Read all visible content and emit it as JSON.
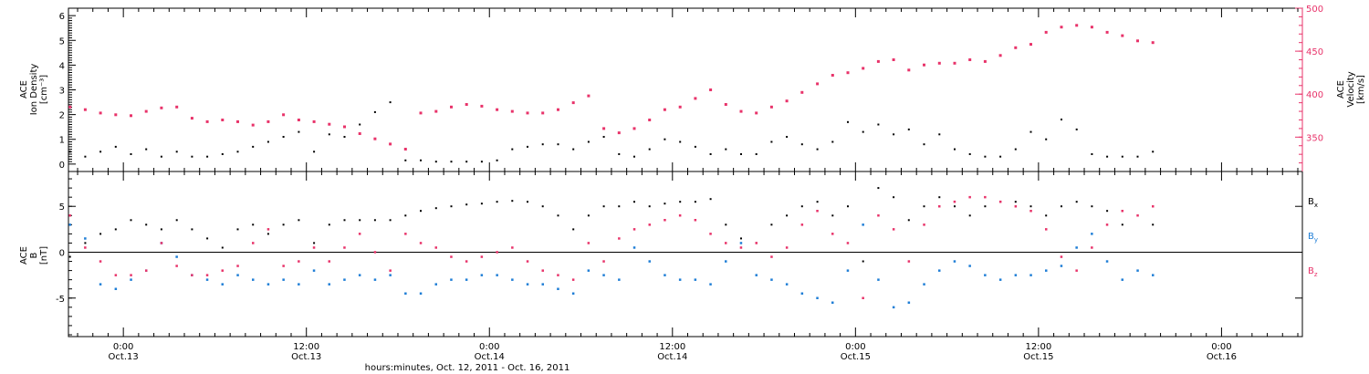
{
  "colors": {
    "density": "#000000",
    "velocity": "#e8336a",
    "bx": "#000000",
    "by": "#1f7ed6",
    "bz": "#e8336a"
  },
  "xaxis": {
    "title": "hours:minutes, Oct. 12, 2011 - Oct. 16, 2011",
    "range_hours": [
      -3.6,
      77.3
    ],
    "ticks": [
      {
        "h": 0,
        "time": "0:00",
        "date": "Oct.13"
      },
      {
        "h": 12,
        "time": "12:00",
        "date": "Oct.13"
      },
      {
        "h": 24,
        "time": "0:00",
        "date": "Oct.14"
      },
      {
        "h": 36,
        "time": "12:00",
        "date": "Oct.14"
      },
      {
        "h": 48,
        "time": "0:00",
        "date": "Oct.15"
      },
      {
        "h": 60,
        "time": "12:00",
        "date": "Oct.15"
      },
      {
        "h": 72,
        "time": "0:00",
        "date": "Oct.16"
      }
    ]
  },
  "chart_data": [
    {
      "type": "scatter",
      "panel": "top",
      "ylabel_left": [
        "ACE",
        "Ion Density",
        "[cm⁻³]"
      ],
      "ylabel_right": [
        "ACE",
        "Velocity",
        "[km/s]"
      ],
      "left_axis": {
        "ylim": [
          -0.3,
          6.3
        ],
        "ticks": [
          0,
          1,
          2,
          3,
          4,
          5,
          6
        ]
      },
      "right_axis": {
        "ylim": [
          310,
          500
        ],
        "ticks": [
          350,
          400,
          450,
          500
        ]
      },
      "series": [
        {
          "axis": "left",
          "x": [
            -3.5,
            -2.5,
            -1.5,
            -0.5,
            0.5,
            1.5,
            2.5,
            3.5,
            4.5,
            5.5,
            6.5,
            7.5,
            8.5,
            9.5,
            10.5,
            11.5,
            12.5,
            13.5,
            14.5,
            15.5,
            16.5,
            17.5,
            18.5,
            19.5,
            20.5,
            21.5,
            22.5,
            23.5,
            24.5,
            25.5,
            26.5,
            27.5,
            28.5,
            29.5,
            30.5,
            31.5,
            32.5,
            33.5,
            34.5,
            35.5,
            36.5,
            37.5,
            38.5,
            39.5,
            40.5,
            41.5,
            42.5,
            43.5,
            44.5,
            45.5,
            46.5,
            47.5,
            48.5,
            49.5,
            50.5,
            51.5,
            52.5,
            53.5,
            54.5,
            55.5,
            56.5,
            57.5,
            58.5,
            59.5,
            60.5,
            61.5,
            62.5,
            63.5,
            64.5,
            65.5,
            66.5,
            67.5
          ],
          "values": [
            0.5,
            0.3,
            0.5,
            0.7,
            0.4,
            0.6,
            0.3,
            0.5,
            0.3,
            0.3,
            0.4,
            0.5,
            0.7,
            0.9,
            1.1,
            1.3,
            0.5,
            1.2,
            1.1,
            1.6,
            2.1,
            2.5,
            0.15,
            0.15,
            0.1,
            0.1,
            0.1,
            0.1,
            0.15,
            0.6,
            0.7,
            0.8,
            0.8,
            0.6,
            0.9,
            1.1,
            0.4,
            0.3,
            0.6,
            1.0,
            0.9,
            0.7,
            0.4,
            0.6,
            0.4,
            0.4,
            0.9,
            1.1,
            0.8,
            0.6,
            0.9,
            1.7,
            1.3,
            1.6,
            1.2,
            1.4,
            0.8,
            1.2,
            0.6,
            0.4,
            0.3,
            0.3,
            0.6,
            1.3,
            1.0,
            1.8,
            1.4,
            0.4,
            0.3,
            0.3,
            0.3,
            0.5
          ]
        },
        {
          "axis": "right",
          "x": [
            -3.5,
            -2.5,
            -1.5,
            -0.5,
            0.5,
            1.5,
            2.5,
            3.5,
            4.5,
            5.5,
            6.5,
            7.5,
            8.5,
            9.5,
            10.5,
            11.5,
            12.5,
            13.5,
            14.5,
            15.5,
            16.5,
            17.5,
            18.5,
            19.5,
            20.5,
            21.5,
            22.5,
            23.5,
            24.5,
            25.5,
            26.5,
            27.5,
            28.5,
            29.5,
            30.5,
            31.5,
            32.5,
            33.5,
            34.5,
            35.5,
            36.5,
            37.5,
            38.5,
            39.5,
            40.5,
            41.5,
            42.5,
            43.5,
            44.5,
            45.5,
            46.5,
            47.5,
            48.5,
            49.5,
            50.5,
            51.5,
            52.5,
            53.5,
            54.5,
            55.5,
            56.5,
            57.5,
            58.5,
            59.5,
            60.5,
            61.5,
            62.5,
            63.5,
            64.5,
            65.5,
            66.5,
            67.5
          ],
          "values": [
            385,
            382,
            378,
            376,
            375,
            380,
            384,
            385,
            372,
            368,
            370,
            368,
            364,
            368,
            376,
            370,
            368,
            365,
            362,
            354,
            348,
            342,
            336,
            378,
            380,
            385,
            388,
            386,
            382,
            380,
            378,
            378,
            382,
            390,
            398,
            360,
            355,
            360,
            370,
            382,
            385,
            395,
            405,
            388,
            380,
            378,
            385,
            392,
            402,
            412,
            422,
            425,
            430,
            438,
            440,
            428,
            434,
            436,
            436,
            440,
            438,
            445,
            454,
            458,
            472,
            478,
            480,
            478,
            472,
            468,
            462,
            460
          ]
        }
      ]
    },
    {
      "type": "scatter",
      "panel": "bottom",
      "ylabel_left": [
        "ACE",
        "B",
        "[nT]"
      ],
      "ylim": [
        -9.2,
        8.8
      ],
      "ticks": [
        -5,
        0,
        5
      ],
      "zero_line": true,
      "series": [
        {
          "name": "B",
          "subscript": "x",
          "x": [
            -3.5,
            -2.5,
            -1.5,
            -0.5,
            0.5,
            1.5,
            2.5,
            3.5,
            4.5,
            5.5,
            6.5,
            7.5,
            8.5,
            9.5,
            10.5,
            11.5,
            12.5,
            13.5,
            14.5,
            15.5,
            16.5,
            17.5,
            18.5,
            19.5,
            20.5,
            21.5,
            22.5,
            23.5,
            24.5,
            25.5,
            26.5,
            27.5,
            28.5,
            29.5,
            30.5,
            31.5,
            32.5,
            33.5,
            34.5,
            35.5,
            36.5,
            37.5,
            38.5,
            39.5,
            40.5,
            41.5,
            42.5,
            43.5,
            44.5,
            45.5,
            46.5,
            47.5,
            48.5,
            49.5,
            50.5,
            51.5,
            52.5,
            53.5,
            54.5,
            55.5,
            56.5,
            57.5,
            58.5,
            59.5,
            60.5,
            61.5,
            62.5,
            63.5,
            64.5,
            65.5,
            66.5,
            67.5
          ],
          "values": [
            -0.5,
            1.0,
            2.0,
            2.5,
            3.5,
            3.0,
            2.5,
            3.5,
            2.5,
            1.5,
            0.5,
            2.5,
            3.0,
            2.0,
            3.0,
            3.5,
            1.0,
            3.0,
            3.5,
            3.5,
            3.5,
            3.5,
            4.0,
            4.5,
            4.8,
            5.0,
            5.2,
            5.3,
            5.5,
            5.6,
            5.5,
            5.0,
            4.0,
            2.5,
            4.0,
            5.0,
            5.0,
            5.5,
            5.0,
            5.3,
            5.5,
            5.5,
            5.8,
            3.0,
            1.5,
            1.0,
            3.0,
            4.0,
            5.0,
            5.5,
            4.0,
            5.0,
            -1.0,
            7.0,
            6.0,
            3.5,
            5.0,
            6.0,
            5.0,
            4.0,
            5.0,
            5.5,
            5.5,
            5.0,
            4.0,
            5.0,
            5.5,
            5.0,
            4.5,
            3.0,
            4.0,
            3.0
          ]
        },
        {
          "name": "B",
          "subscript": "y",
          "x": [
            -3.5,
            -2.5,
            -1.5,
            -0.5,
            0.5,
            1.5,
            2.5,
            3.5,
            4.5,
            5.5,
            6.5,
            7.5,
            8.5,
            9.5,
            10.5,
            11.5,
            12.5,
            13.5,
            14.5,
            15.5,
            16.5,
            17.5,
            18.5,
            19.5,
            20.5,
            21.5,
            22.5,
            23.5,
            24.5,
            25.5,
            26.5,
            27.5,
            28.5,
            29.5,
            30.5,
            31.5,
            32.5,
            33.5,
            34.5,
            35.5,
            36.5,
            37.5,
            38.5,
            39.5,
            40.5,
            41.5,
            42.5,
            43.5,
            44.5,
            45.5,
            46.5,
            47.5,
            48.5,
            49.5,
            50.5,
            51.5,
            52.5,
            53.5,
            54.5,
            55.5,
            56.5,
            57.5,
            58.5,
            59.5,
            60.5,
            61.5,
            62.5,
            63.5,
            64.5,
            65.5,
            66.5,
            67.5
          ],
          "values": [
            3.0,
            1.5,
            -3.5,
            -4.0,
            -3.0,
            -2.0,
            1.0,
            -0.5,
            -2.5,
            -3.0,
            -3.5,
            -2.5,
            -3.0,
            -3.5,
            -3.0,
            -3.5,
            -2.0,
            -3.5,
            -3.0,
            -2.5,
            -3.0,
            -2.5,
            -4.5,
            -4.5,
            -3.5,
            -3.0,
            -3.0,
            -2.5,
            -2.5,
            -3.0,
            -3.5,
            -3.5,
            -4.0,
            -4.5,
            -2.0,
            -2.5,
            -3.0,
            0.5,
            -1.0,
            -2.5,
            -3.0,
            -3.0,
            -3.5,
            -1.0,
            1.0,
            -2.5,
            -3.0,
            -3.5,
            -4.5,
            -5.0,
            -5.5,
            -2.0,
            3.0,
            -3.0,
            -6.0,
            -5.5,
            -3.5,
            -2.0,
            -1.0,
            -1.5,
            -2.5,
            -3.0,
            -2.5,
            -2.5,
            -2.0,
            -1.5,
            0.5,
            2.0,
            -1.0,
            -3.0,
            -2.0,
            -2.5
          ]
        },
        {
          "name": "B",
          "subscript": "z",
          "x": [
            -3.5,
            -2.5,
            -1.5,
            -0.5,
            0.5,
            1.5,
            2.5,
            3.5,
            4.5,
            5.5,
            6.5,
            7.5,
            8.5,
            9.5,
            10.5,
            11.5,
            12.5,
            13.5,
            14.5,
            15.5,
            16.5,
            17.5,
            18.5,
            19.5,
            20.5,
            21.5,
            22.5,
            23.5,
            24.5,
            25.5,
            26.5,
            27.5,
            28.5,
            29.5,
            30.5,
            31.5,
            32.5,
            33.5,
            34.5,
            35.5,
            36.5,
            37.5,
            38.5,
            39.5,
            40.5,
            41.5,
            42.5,
            43.5,
            44.5,
            45.5,
            46.5,
            47.5,
            48.5,
            49.5,
            50.5,
            51.5,
            52.5,
            53.5,
            54.5,
            55.5,
            56.5,
            57.5,
            58.5,
            59.5,
            60.5,
            61.5,
            62.5,
            63.5,
            64.5,
            65.5,
            66.5,
            67.5
          ],
          "values": [
            4.0,
            0.5,
            -1.0,
            -2.5,
            -2.5,
            -2.0,
            1.0,
            -1.5,
            -2.5,
            -2.5,
            -2.0,
            -1.5,
            1.0,
            2.5,
            -1.5,
            -1.0,
            0.5,
            -1.0,
            0.5,
            2.0,
            0.0,
            -2.0,
            2.0,
            1.0,
            0.5,
            -0.5,
            -1.0,
            -0.5,
            0.0,
            0.5,
            -1.0,
            -2.0,
            -2.5,
            -3.0,
            1.0,
            -1.0,
            1.5,
            2.5,
            3.0,
            3.5,
            4.0,
            3.5,
            2.0,
            1.0,
            0.5,
            1.0,
            -0.5,
            0.5,
            3.0,
            4.5,
            2.0,
            1.0,
            -5.0,
            4.0,
            2.5,
            -1.0,
            3.0,
            5.0,
            5.5,
            6.0,
            6.0,
            5.5,
            5.0,
            4.5,
            2.5,
            -0.5,
            -2.0,
            0.5,
            3.0,
            4.5,
            4.0,
            5.0
          ]
        }
      ]
    }
  ]
}
